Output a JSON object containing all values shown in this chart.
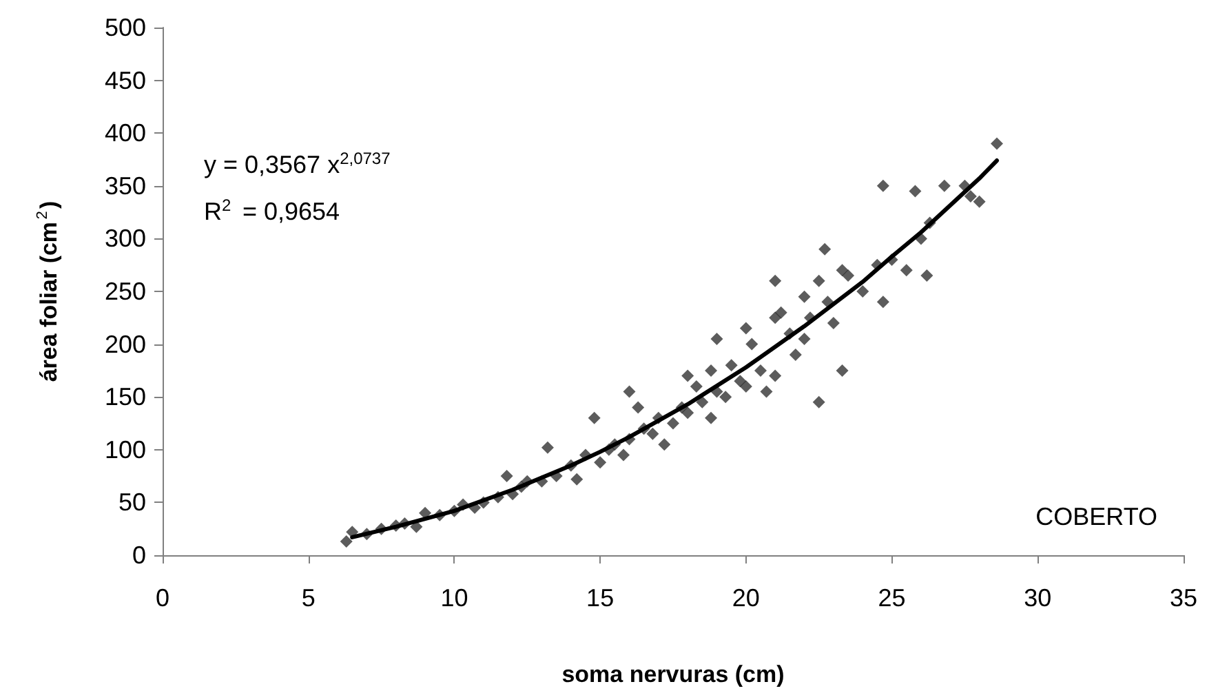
{
  "chart_data": {
    "type": "scatter",
    "xlabel": "soma nervuras (cm)",
    "ylabel": "área foliar (cm$^{2}$)",
    "annotations": [
      "y = 0,3567 x$^{2,0737}$",
      "R$^{2}$ = 0,9654",
      "COBERTO"
    ],
    "xlim": [
      0,
      35
    ],
    "xticks": [
      0,
      5,
      10,
      15,
      20,
      25,
      30,
      35
    ],
    "ylim": [
      0,
      500
    ],
    "yticks": [
      0,
      50,
      100,
      150,
      200,
      250,
      300,
      350,
      400,
      450,
      500
    ],
    "grid": false,
    "marker": "diamond",
    "series": [
      {
        "color": "#333333",
        "x": [
          6.3,
          6.5,
          7,
          7.5,
          8,
          8.3,
          8.7,
          9,
          9.5,
          10,
          10.3,
          10.7,
          11,
          11.5,
          11.8,
          12,
          12.3,
          12.5,
          13,
          13.2,
          13.5,
          14,
          14.2,
          14.5,
          14.8,
          15,
          15.3,
          15.5,
          15.8,
          16,
          16,
          16.3,
          16.5,
          16.8,
          17,
          17.2,
          17.5,
          17.8,
          18,
          18,
          18.3,
          18.5,
          18.8,
          18.8,
          19,
          19,
          19.3,
          19.5,
          19.8,
          20,
          20,
          20.2,
          20.5,
          20.7,
          21,
          21,
          21,
          21.2,
          21.5,
          21.7,
          22,
          22,
          22.2,
          22.5,
          22.5,
          22.7,
          22.8,
          23,
          23.3,
          23.3,
          23.5,
          24,
          24.5,
          24.7,
          24.7,
          25,
          25.5,
          25.8,
          26,
          26.2,
          26.3,
          26.8,
          27.5,
          27.7,
          28,
          28.6
        ],
        "values": [
          13,
          22,
          20,
          25,
          28,
          30,
          27,
          40,
          38,
          42,
          48,
          45,
          50,
          55,
          75,
          58,
          65,
          70,
          70,
          102,
          75,
          85,
          72,
          95,
          130,
          88,
          100,
          105,
          95,
          155,
          110,
          140,
          120,
          115,
          130,
          105,
          125,
          140,
          170,
          135,
          160,
          145,
          175,
          130,
          205,
          155,
          150,
          180,
          165,
          215,
          160,
          200,
          175,
          155,
          260,
          225,
          170,
          230,
          210,
          190,
          245,
          205,
          225,
          145,
          260,
          290,
          240,
          220,
          175,
          270,
          265,
          250,
          275,
          350,
          240,
          280,
          270,
          345,
          300,
          265,
          315,
          350,
          350,
          340,
          335,
          390
        ]
      },
      {
        "type": "line",
        "color": "#000000",
        "marker": "none",
        "x": [
          6.5,
          8,
          10,
          12,
          14,
          15,
          16,
          18,
          20,
          22,
          24,
          25,
          26,
          28,
          28.6
        ],
        "values": [
          17,
          27,
          42,
          62,
          85,
          98,
          112,
          143,
          178,
          217,
          259,
          283,
          306,
          357,
          374
        ]
      }
    ]
  }
}
